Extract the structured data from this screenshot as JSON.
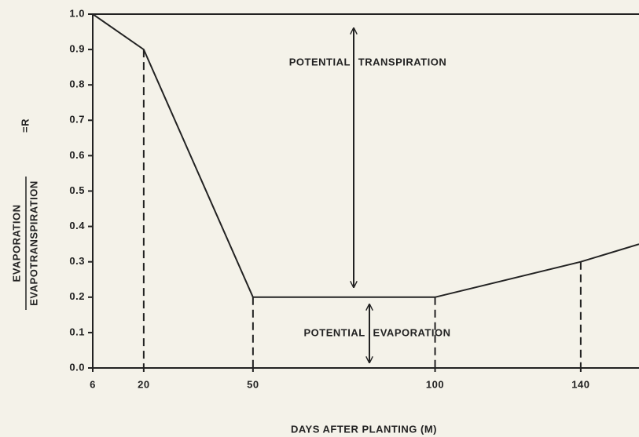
{
  "chart_data": {
    "type": "line",
    "xlabel": "DAYS AFTER PLANTING (M)",
    "ylabel": {
      "numerator": "EVAPORATION",
      "denominator": "EVAPOTRANSPIRATION",
      "suffix": "=R"
    },
    "annotations": [
      "POTENTIAL TRANSPIRATION",
      "POTENTIAL EVAPORATION"
    ],
    "x": [
      6,
      20,
      50,
      100,
      140,
      156
    ],
    "series": [
      {
        "color": "#222222",
        "values": [
          1.0,
          0.9,
          0.2,
          0.2,
          0.3,
          0.35
        ]
      }
    ],
    "xlim": [
      6,
      156
    ],
    "xticks": [
      6,
      20,
      50,
      100,
      140
    ],
    "ylim": [
      0,
      1
    ],
    "yticks": [
      {
        "value": 0,
        "label": "0.0"
      },
      0.1,
      0.2,
      0.3,
      0.4,
      0.5,
      0.6,
      0.7,
      0.8,
      0.9,
      {
        "value": 1,
        "label": "1.0"
      }
    ],
    "grid": false
  }
}
